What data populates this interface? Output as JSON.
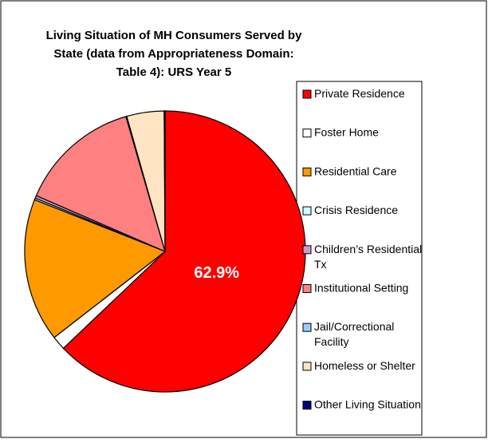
{
  "chart_data": {
    "type": "pie",
    "title": "Living Situation of MH Consumers Served by State (data from Appropriateness Domain: Table 4): URS Year 5",
    "categories": [
      "Private Residence",
      "Foster Home",
      "Residential Care",
      "Crisis Residence",
      "Children’s Residential Tx",
      "Institutional Setting",
      "Jail/Correctional Facility",
      "Homeless or Shelter",
      "Other Living Situation"
    ],
    "values": [
      62.9,
      1.6,
      16.5,
      0.2,
      0.3,
      14.0,
      0.1,
      4.3,
      0.1
    ],
    "value_labels": [
      "62.9%",
      null,
      null,
      null,
      null,
      null,
      null,
      null,
      null
    ],
    "colors": [
      "#ff0000",
      "#ffffff",
      "#ff9900",
      "#ccffff",
      "#cc99cc",
      "#ff8080",
      "#99ccff",
      "#ffe4c4",
      "#000080"
    ],
    "legend": "right"
  }
}
